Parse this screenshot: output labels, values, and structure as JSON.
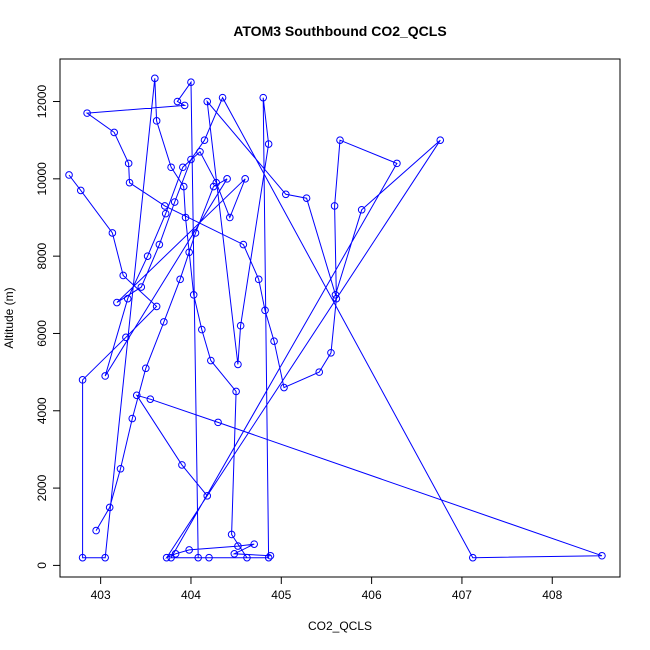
{
  "chart_data": {
    "type": "scatter",
    "title": "ATOM3 Southbound CO2_QCLS",
    "xlabel": "CO2_QCLS",
    "ylabel": "Altitude (m)",
    "xlim": [
      402.55,
      408.75
    ],
    "ylim": [
      -300,
      13100
    ],
    "x_ticks": [
      403,
      404,
      405,
      406,
      407,
      408
    ],
    "y_ticks": [
      0,
      2000,
      4000,
      6000,
      8000,
      10000,
      12000
    ],
    "x_tick_labels": [
      "403",
      "404",
      "405",
      "406",
      "407",
      "408"
    ],
    "y_tick_labels": [
      "0",
      "2000",
      "4000",
      "6000",
      "8000",
      "10000",
      "12000"
    ],
    "series_color": "#0000ff",
    "grid": false,
    "marker": "open-circle",
    "connected": true,
    "series": [
      {
        "x": [
          402.65,
          402.78,
          403.13,
          403.25,
          403.62,
          403.28,
          402.8,
          402.8,
          403.05,
          403.6,
          403.62,
          403.78,
          403.92,
          403.94,
          403.98,
          404.03,
          404.12,
          404.22,
          404.5,
          404.45,
          404.62,
          404.08,
          404.0,
          403.85,
          403.93,
          402.85,
          403.15,
          403.31,
          403.32,
          403.71,
          404.58,
          404.75,
          404.82,
          404.92,
          405.03,
          405.42,
          405.55,
          405.61,
          405.59,
          405.65,
          406.28,
          403.78,
          404.2,
          404.86,
          404.8,
          404.86,
          404.55,
          404.52,
          404.18,
          405.05,
          405.28,
          405.6,
          405.89,
          406.76,
          403.73,
          403.83,
          403.98,
          404.52,
          404.7,
          404.48,
          404.88
        ],
        "y": [
          10100,
          9700,
          8600,
          7500,
          6700,
          5900,
          4800,
          200,
          200,
          12600,
          11500,
          10300,
          9800,
          9000,
          8100,
          7000,
          6100,
          5300,
          4500,
          800,
          200,
          200,
          12500,
          12000,
          11900,
          11700,
          11200,
          10400,
          9900,
          9300,
          8300,
          7400,
          6600,
          5800,
          4600,
          5000,
          5500,
          6900,
          9300,
          11000,
          10400,
          200,
          200,
          200,
          12100,
          10900,
          6200,
          5200,
          12000,
          9600,
          9500,
          7000,
          9200,
          11000,
          200,
          300,
          400,
          500,
          550,
          300,
          250
        ]
      },
      {
        "x": [
          402.95,
          403.1,
          403.22,
          403.35,
          403.5,
          403.7,
          403.88,
          404.05,
          404.25,
          404.4,
          403.05,
          403.3,
          403.52,
          403.72,
          403.91,
          404.1,
          404.28,
          404.43,
          404.6,
          403.18,
          403.45,
          403.65,
          403.82,
          404.0,
          404.15,
          404.35,
          407.12,
          408.55,
          404.3,
          403.55,
          403.4,
          403.9,
          404.18
        ],
        "y": [
          900,
          1500,
          2500,
          3800,
          5100,
          6300,
          7400,
          8600,
          9800,
          10000,
          4900,
          6900,
          8000,
          9100,
          10300,
          10700,
          9900,
          9000,
          10000,
          6800,
          7200,
          8300,
          9400,
          10500,
          11000,
          12100,
          200,
          250,
          3700,
          4300,
          4400,
          2600,
          1800
        ]
      }
    ]
  }
}
